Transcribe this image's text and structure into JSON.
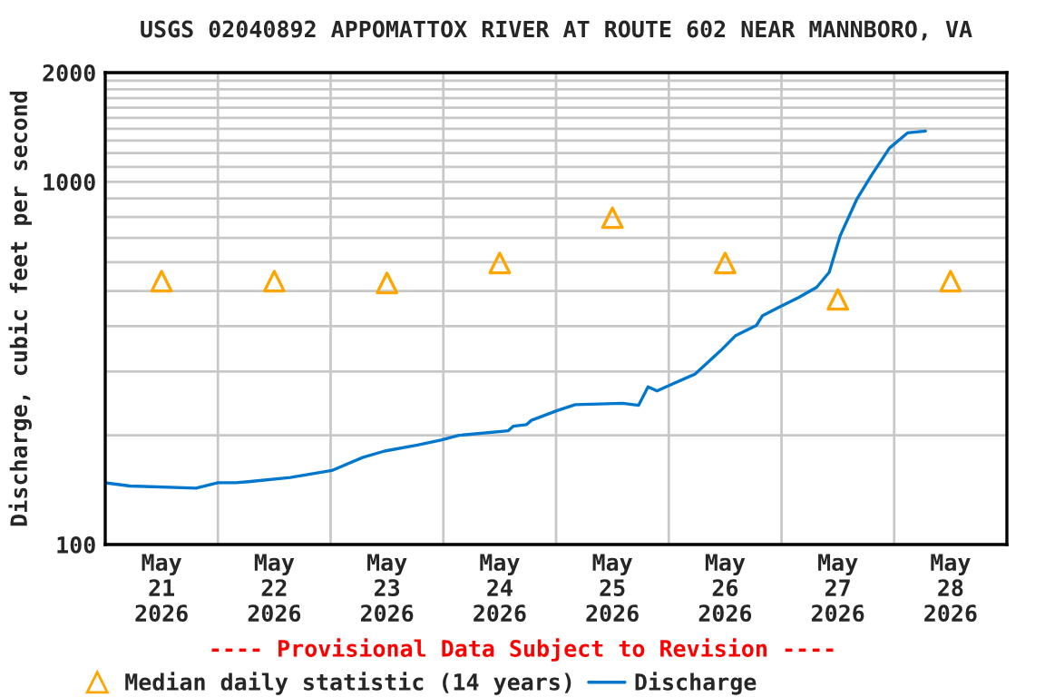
{
  "chart_data": {
    "type": "line",
    "title": "USGS 02040892 APPOMATTOX RIVER AT ROUTE 602 NEAR MANNBORO, VA",
    "ylabel": "Discharge, cubic feet per second",
    "annotations": [
      "---- Provisional Data Subject to Revision ----"
    ],
    "log": true,
    "grid": true,
    "legend": "bottom",
    "xlim": [
      "2026-05-21",
      "2026-05-29"
    ],
    "xticks": [
      {
        "value": "2026-05-21",
        "label": null
      },
      {
        "value": "2026-05-21T12:00",
        "label": "May\n21\n2026"
      },
      {
        "value": "2026-05-22",
        "label": null
      },
      {
        "value": "2026-05-22T12:00",
        "label": "May\n22\n2026"
      },
      {
        "value": "2026-05-23",
        "label": null
      },
      {
        "value": "2026-05-23T12:00",
        "label": "May\n23\n2026"
      },
      {
        "value": "2026-05-24",
        "label": null
      },
      {
        "value": "2026-05-24T12:00",
        "label": "May\n24\n2026"
      },
      {
        "value": "2026-05-25",
        "label": null
      },
      {
        "value": "2026-05-25T12:00",
        "label": "May\n25\n2026"
      },
      {
        "value": "2026-05-26",
        "label": null
      },
      {
        "value": "2026-05-26T12:00",
        "label": "May\n26\n2026"
      },
      {
        "value": "2026-05-27",
        "label": null
      },
      {
        "value": "2026-05-27T12:00",
        "label": "May\n27\n2026"
      },
      {
        "value": "2026-05-28",
        "label": null
      },
      {
        "value": "2026-05-28T12:00",
        "label": "May\n28\n2026"
      },
      {
        "value": "2026-05-29",
        "label": null
      }
    ],
    "ylim": [
      100,
      2000
    ],
    "yticks": [
      100,
      {
        "value": 200,
        "label": null
      },
      {
        "value": 300,
        "label": null
      },
      {
        "value": 400,
        "label": null
      },
      {
        "value": 500,
        "label": null
      },
      {
        "value": 600,
        "label": null
      },
      {
        "value": 700,
        "label": null
      },
      {
        "value": 800,
        "label": null
      },
      {
        "value": 900,
        "label": null
      },
      1000,
      {
        "value": 1100,
        "label": null
      },
      {
        "value": 1200,
        "label": null
      },
      {
        "value": 1300,
        "label": null
      },
      {
        "value": 1400,
        "label": null
      },
      {
        "value": 1500,
        "label": null
      },
      {
        "value": 1600,
        "label": null
      },
      {
        "value": 1700,
        "label": null
      },
      {
        "value": 1800,
        "label": null
      },
      {
        "value": 1900,
        "label": null
      },
      2000
    ],
    "series": [
      {
        "name": "Median daily statistic (14 years)",
        "type": "scatter",
        "marker": "triangle",
        "color": "#ffa500",
        "x": [
          "2026-05-21T12:00",
          "2026-05-22T12:00",
          "2026-05-23T12:00",
          "2026-05-24T12:00",
          "2026-05-25T12:00",
          "2026-05-26T12:00",
          "2026-05-27T12:00",
          "2026-05-28T12:00"
        ],
        "values": [
          532,
          532,
          526,
          597,
          796,
          597,
          474,
          532
        ]
      },
      {
        "name": "Discharge",
        "color": "#0077cc",
        "x": [
          "2026-05-21T00:00",
          "2026-05-21T05:15",
          "2026-05-21T19:20",
          "2026-05-22T00:00",
          "2026-05-22T03:50",
          "2026-05-22T06:30",
          "2026-05-22T15:25",
          "2026-05-23T00:15",
          "2026-05-23T06:55",
          "2026-05-23T11:30",
          "2026-05-23T18:30",
          "2026-05-23T23:30",
          "2026-05-24T03:20",
          "2026-05-24T13:50",
          "2026-05-24T14:55",
          "2026-05-24T17:40",
          "2026-05-24T18:45",
          "2026-05-25T00:15",
          "2026-05-25T04:05",
          "2026-05-25T14:10",
          "2026-05-25T17:35",
          "2026-05-25T19:35",
          "2026-05-25T21:30",
          "2026-05-25T23:25",
          "2026-05-26T05:35",
          "2026-05-26T11:00",
          "2026-05-26T14:10",
          "2026-05-26T18:40",
          "2026-05-26T19:55",
          "2026-05-26T23:00",
          "2026-05-27T03:40",
          "2026-05-27T07:30",
          "2026-05-27T10:10",
          "2026-05-27T12:30",
          "2026-05-27T16:00",
          "2026-05-27T19:10",
          "2026-05-27T23:00",
          "2026-05-28T02:50",
          "2026-05-28T06:40"
        ],
        "values": [
          148,
          145,
          143,
          148,
          148,
          149,
          153,
          160,
          174,
          181,
          188,
          194,
          200,
          206,
          212,
          214,
          220,
          234,
          243,
          245,
          242,
          272,
          265,
          272,
          295,
          342,
          376,
          402,
          427,
          448,
          480,
          512,
          563,
          710,
          893,
          1042,
          1239,
          1364,
          1380
        ]
      }
    ]
  }
}
